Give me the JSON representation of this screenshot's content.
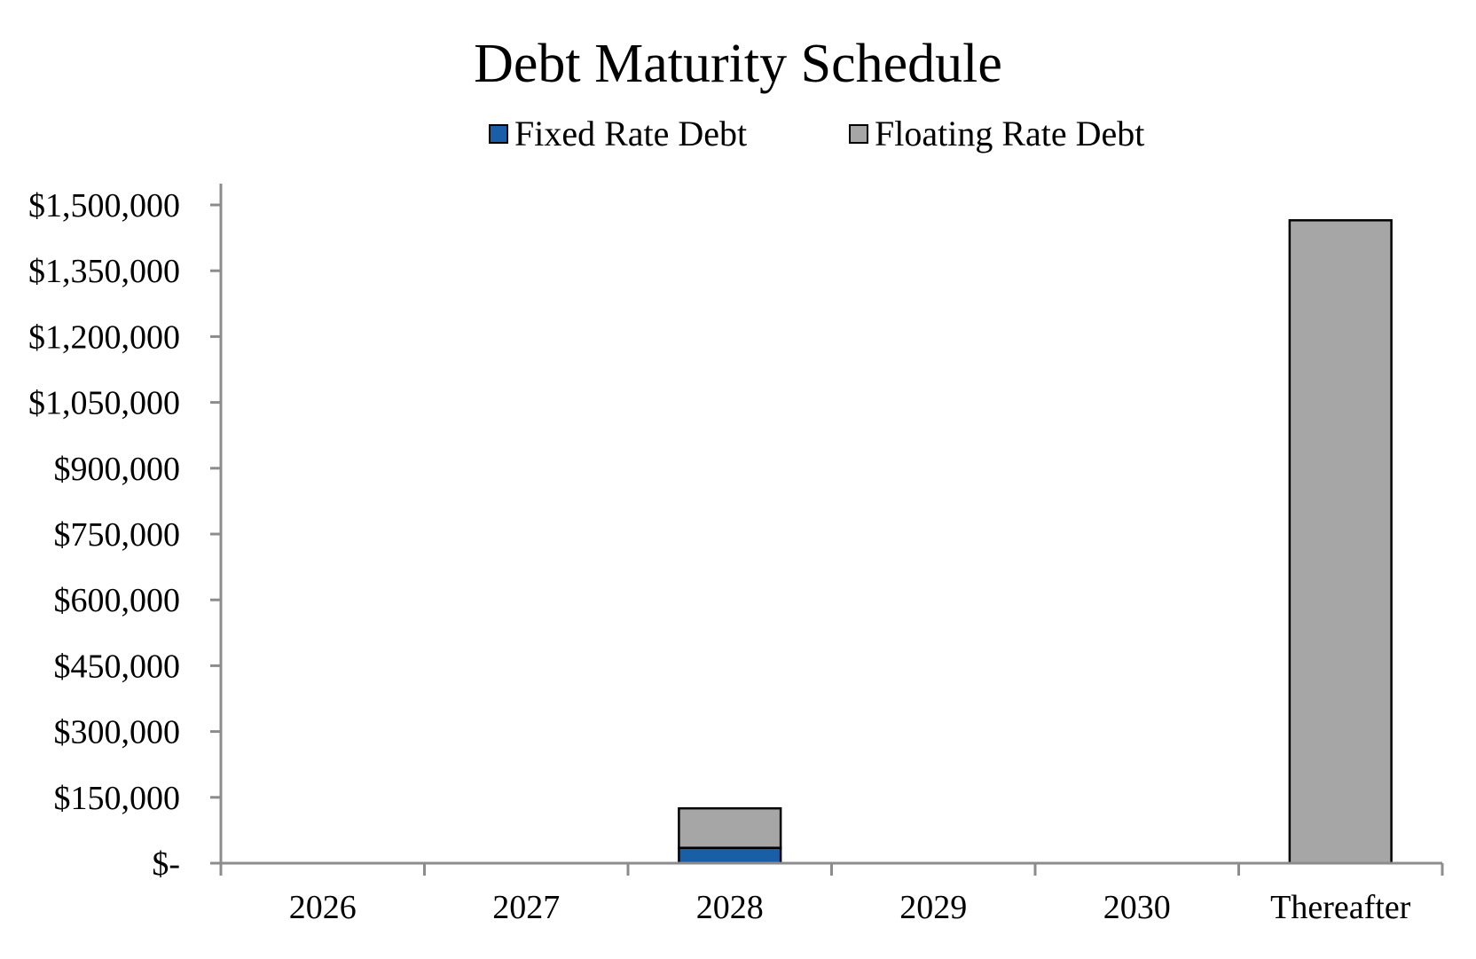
{
  "chart_data": {
    "type": "bar",
    "stacked": true,
    "title": "Debt Maturity Schedule",
    "xlabel": "",
    "ylabel": "",
    "categories": [
      "2026",
      "2027",
      "2028",
      "2029",
      "2030",
      "Thereafter"
    ],
    "series": [
      {
        "name": "Fixed Rate Debt",
        "values": [
          0,
          0,
          35000,
          0,
          0,
          0
        ],
        "color": "#1a5ea8"
      },
      {
        "name": "Floating Rate Debt",
        "values": [
          0,
          0,
          90000,
          0,
          0,
          1465000
        ],
        "color": "#a6a6a6"
      }
    ],
    "ylim": [
      0,
      1500000
    ],
    "yticks": [
      0,
      150000,
      300000,
      450000,
      600000,
      750000,
      900000,
      1050000,
      1200000,
      1350000,
      1500000
    ],
    "ytick_labels": [
      "$-",
      "$150,000",
      "$300,000",
      "$450,000",
      "$600,000",
      "$750,000",
      "$900,000",
      "$1,050,000",
      "$1,200,000",
      "$1,350,000",
      "$1,500,000"
    ],
    "legend_position": "top",
    "grid": false
  }
}
